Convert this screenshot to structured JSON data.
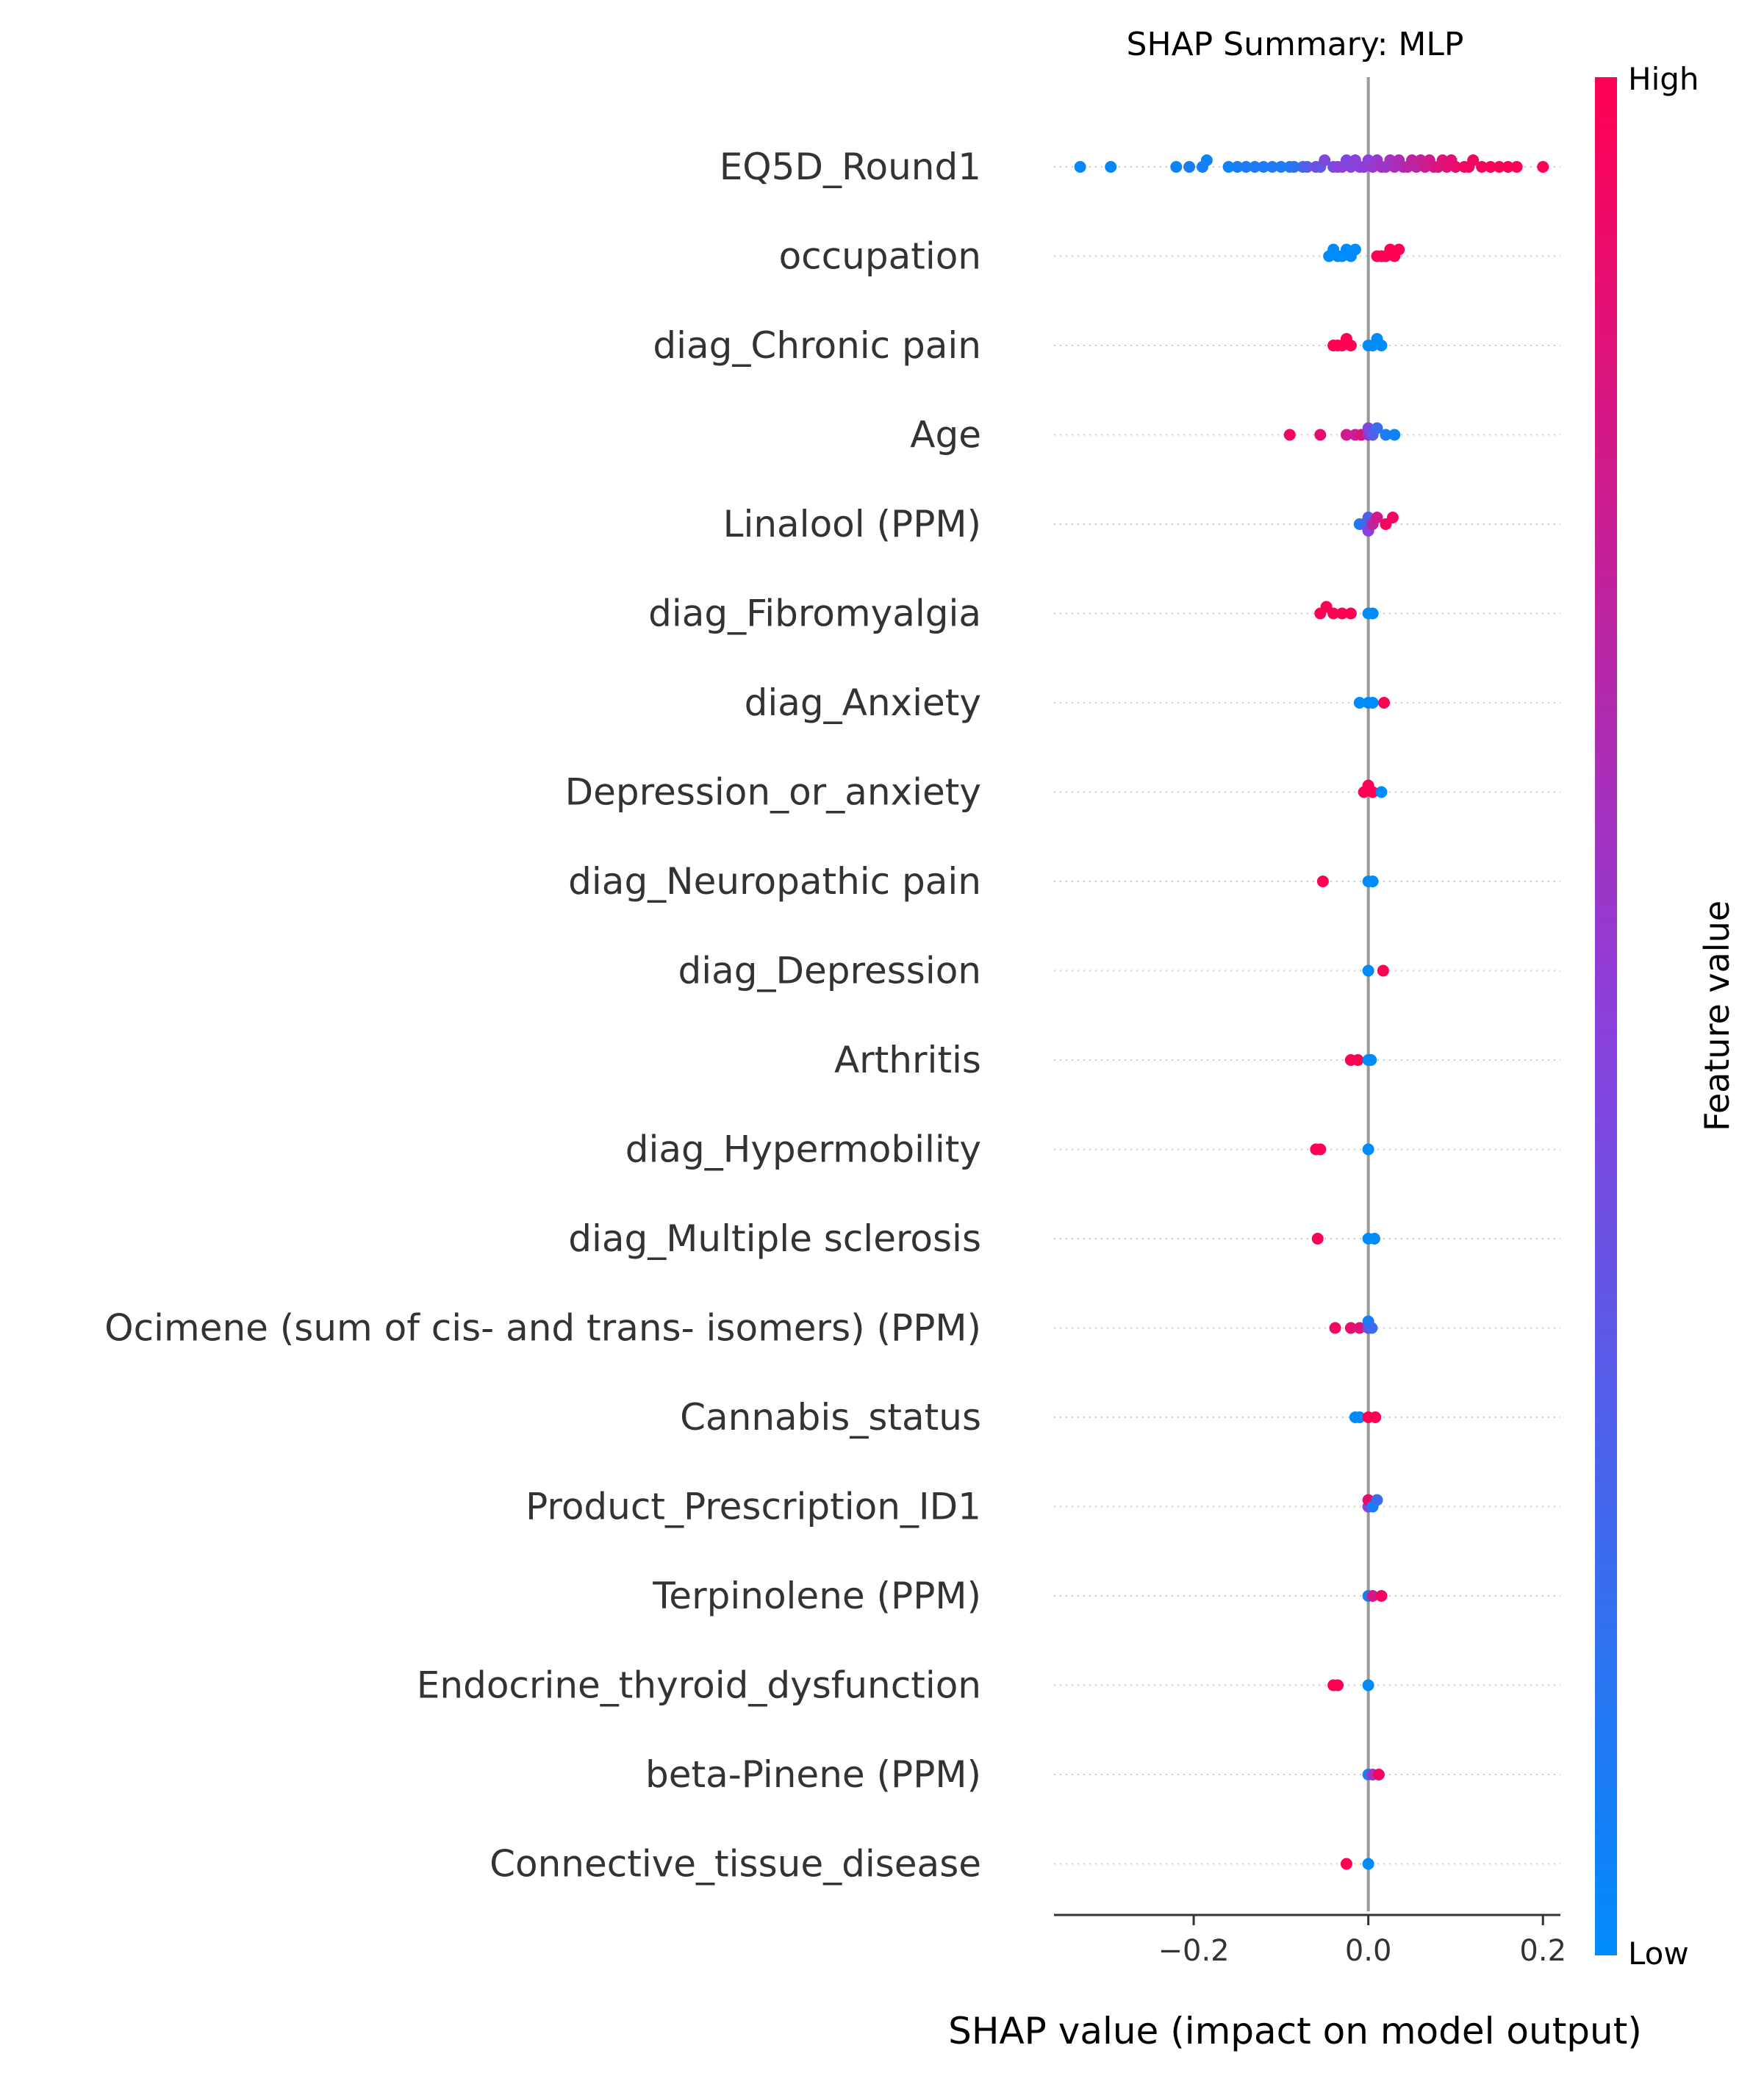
{
  "chart_data": {
    "type": "scatter",
    "subtype": "shap-beeswarm",
    "title": "SHAP Summary: MLP",
    "xlabel": "SHAP value (impact on model output)",
    "ylabel": "",
    "xlim": [
      -0.36,
      0.22
    ],
    "xticks": [
      -0.2,
      0.0,
      0.2
    ],
    "xtick_labels": [
      "−0.2",
      "0.0",
      "0.2"
    ],
    "zero_line": 0.0,
    "grid": "dotted horizontal per feature",
    "colorbar": {
      "label": "Feature value",
      "high_label": "High",
      "low_label": "Low",
      "low_color": "#008bfb",
      "mid_color": "#8b3fdb",
      "high_color": "#ff0052",
      "placement": "right"
    },
    "features": [
      {
        "name": "EQ5D_Round1",
        "points": [
          [
            -0.33,
            0.02
          ],
          [
            -0.295,
            0.03
          ],
          [
            -0.22,
            0.05
          ],
          [
            -0.205,
            0.1
          ],
          [
            -0.19,
            0.08
          ],
          [
            -0.185,
            0.05
          ],
          [
            -0.16,
            0.05
          ],
          [
            -0.15,
            0.08
          ],
          [
            -0.14,
            0.1
          ],
          [
            -0.13,
            0.12
          ],
          [
            -0.12,
            0.1
          ],
          [
            -0.11,
            0.12
          ],
          [
            -0.1,
            0.1
          ],
          [
            -0.09,
            0.12
          ],
          [
            -0.085,
            0.15
          ],
          [
            -0.075,
            0.22
          ],
          [
            -0.07,
            0.3
          ],
          [
            -0.06,
            0.4
          ],
          [
            -0.055,
            0.35
          ],
          [
            -0.05,
            0.45
          ],
          [
            -0.04,
            0.42
          ],
          [
            -0.035,
            0.5
          ],
          [
            -0.03,
            0.5
          ],
          [
            -0.025,
            0.45
          ],
          [
            -0.02,
            0.48
          ],
          [
            -0.015,
            0.5
          ],
          [
            -0.01,
            0.5
          ],
          [
            -0.005,
            0.52
          ],
          [
            0.0,
            0.5
          ],
          [
            0.005,
            0.55
          ],
          [
            0.01,
            0.55
          ],
          [
            0.015,
            0.6
          ],
          [
            0.02,
            0.58
          ],
          [
            0.025,
            0.6
          ],
          [
            0.03,
            0.62
          ],
          [
            0.035,
            0.65
          ],
          [
            0.04,
            0.65
          ],
          [
            0.045,
            0.7
          ],
          [
            0.05,
            0.72
          ],
          [
            0.055,
            0.7
          ],
          [
            0.06,
            0.75
          ],
          [
            0.065,
            0.78
          ],
          [
            0.07,
            0.8
          ],
          [
            0.075,
            0.8
          ],
          [
            0.08,
            0.85
          ],
          [
            0.085,
            0.85
          ],
          [
            0.09,
            0.87
          ],
          [
            0.095,
            0.88
          ],
          [
            0.1,
            0.9
          ],
          [
            0.11,
            0.92
          ],
          [
            0.115,
            0.95
          ],
          [
            0.12,
            0.95
          ],
          [
            0.13,
            0.96
          ],
          [
            0.14,
            0.97
          ],
          [
            0.15,
            0.98
          ],
          [
            0.16,
            0.98
          ],
          [
            0.17,
            0.99
          ],
          [
            0.2,
            1.0
          ]
        ]
      },
      {
        "name": "occupation",
        "points": [
          [
            -0.045,
            0.0
          ],
          [
            -0.04,
            0.0
          ],
          [
            -0.035,
            0.0
          ],
          [
            -0.03,
            0.0
          ],
          [
            -0.025,
            0.0
          ],
          [
            -0.02,
            0.0
          ],
          [
            -0.015,
            0.0
          ],
          [
            0.01,
            1.0
          ],
          [
            0.015,
            1.0
          ],
          [
            0.02,
            1.0
          ],
          [
            0.025,
            1.0
          ],
          [
            0.03,
            1.0
          ],
          [
            0.035,
            1.0
          ]
        ]
      },
      {
        "name": "diag_Chronic pain",
        "points": [
          [
            -0.04,
            1.0
          ],
          [
            -0.035,
            1.0
          ],
          [
            -0.03,
            1.0
          ],
          [
            -0.025,
            1.0
          ],
          [
            -0.02,
            1.0
          ],
          [
            0.0,
            0.0
          ],
          [
            0.005,
            0.0
          ],
          [
            0.01,
            0.0
          ],
          [
            0.015,
            0.0
          ]
        ]
      },
      {
        "name": "Age",
        "points": [
          [
            -0.09,
            0.95
          ],
          [
            -0.055,
            0.9
          ],
          [
            -0.025,
            0.8
          ],
          [
            -0.015,
            0.75
          ],
          [
            -0.008,
            0.85
          ],
          [
            0.0,
            0.6
          ],
          [
            0.0,
            0.45
          ],
          [
            0.005,
            0.3
          ],
          [
            0.01,
            0.2
          ],
          [
            0.02,
            0.1
          ],
          [
            0.03,
            0.05
          ]
        ]
      },
      {
        "name": "Linalool (PPM)",
        "points": [
          [
            -0.01,
            0.1
          ],
          [
            -0.005,
            0.2
          ],
          [
            0.0,
            0.3
          ],
          [
            0.0,
            0.5
          ],
          [
            0.005,
            0.7
          ],
          [
            0.01,
            0.8
          ],
          [
            0.02,
            0.95
          ],
          [
            0.028,
            0.95
          ]
        ]
      },
      {
        "name": "diag_Fibromyalgia",
        "points": [
          [
            -0.055,
            1.0
          ],
          [
            -0.048,
            1.0
          ],
          [
            -0.04,
            1.0
          ],
          [
            -0.03,
            1.0
          ],
          [
            -0.02,
            1.0
          ],
          [
            0.0,
            0.0
          ],
          [
            0.005,
            0.0
          ]
        ]
      },
      {
        "name": "diag_Anxiety",
        "points": [
          [
            -0.01,
            0.0
          ],
          [
            0.0,
            0.0
          ],
          [
            0.005,
            0.0
          ],
          [
            0.018,
            1.0
          ]
        ]
      },
      {
        "name": "Depression_or_anxiety",
        "points": [
          [
            -0.005,
            1.0
          ],
          [
            0.0,
            1.0
          ],
          [
            0.005,
            1.0
          ],
          [
            0.015,
            0.0
          ]
        ]
      },
      {
        "name": "diag_Neuropathic pain",
        "points": [
          [
            -0.052,
            1.0
          ],
          [
            0.0,
            0.0
          ],
          [
            0.005,
            0.0
          ]
        ]
      },
      {
        "name": "diag_Depression",
        "points": [
          [
            0.0,
            0.0
          ],
          [
            0.017,
            1.0
          ]
        ]
      },
      {
        "name": "Arthritis",
        "points": [
          [
            -0.02,
            1.0
          ],
          [
            -0.012,
            1.0
          ],
          [
            0.0,
            0.0
          ],
          [
            0.003,
            0.0
          ]
        ]
      },
      {
        "name": "diag_Hypermobility",
        "points": [
          [
            -0.06,
            1.0
          ],
          [
            -0.055,
            1.0
          ],
          [
            0.0,
            0.0
          ]
        ]
      },
      {
        "name": "diag_Multiple sclerosis",
        "points": [
          [
            -0.058,
            1.0
          ],
          [
            0.0,
            0.0
          ],
          [
            0.007,
            0.0
          ]
        ]
      },
      {
        "name": "Ocimene (sum of cis- and trans- isomers) (PPM)",
        "points": [
          [
            -0.038,
            0.95
          ],
          [
            -0.02,
            0.9
          ],
          [
            -0.01,
            0.85
          ],
          [
            0.0,
            0.4
          ],
          [
            0.0,
            0.1
          ],
          [
            0.004,
            0.2
          ]
        ]
      },
      {
        "name": "Cannabis_status",
        "points": [
          [
            -0.015,
            0.0
          ],
          [
            -0.01,
            0.0
          ],
          [
            0.0,
            1.0
          ],
          [
            0.008,
            1.0
          ]
        ]
      },
      {
        "name": "Product_Prescription_ID1",
        "points": [
          [
            0.0,
            0.5
          ],
          [
            0.0,
            0.9
          ],
          [
            0.005,
            0.1
          ],
          [
            0.01,
            0.2
          ]
        ]
      },
      {
        "name": "Terpinolene (PPM)",
        "points": [
          [
            0.0,
            0.1
          ],
          [
            0.005,
            0.8
          ],
          [
            0.015,
            0.95
          ]
        ]
      },
      {
        "name": "Endocrine_thyroid_dysfunction",
        "points": [
          [
            -0.04,
            1.0
          ],
          [
            -0.035,
            1.0
          ],
          [
            0.0,
            0.0
          ]
        ]
      },
      {
        "name": "beta-Pinene (PPM)",
        "points": [
          [
            0.0,
            0.1
          ],
          [
            0.005,
            0.6
          ],
          [
            0.012,
            0.95
          ]
        ]
      },
      {
        "name": "Connective_tissue_disease",
        "points": [
          [
            -0.025,
            1.0
          ],
          [
            0.0,
            0.0
          ]
        ]
      }
    ]
  }
}
